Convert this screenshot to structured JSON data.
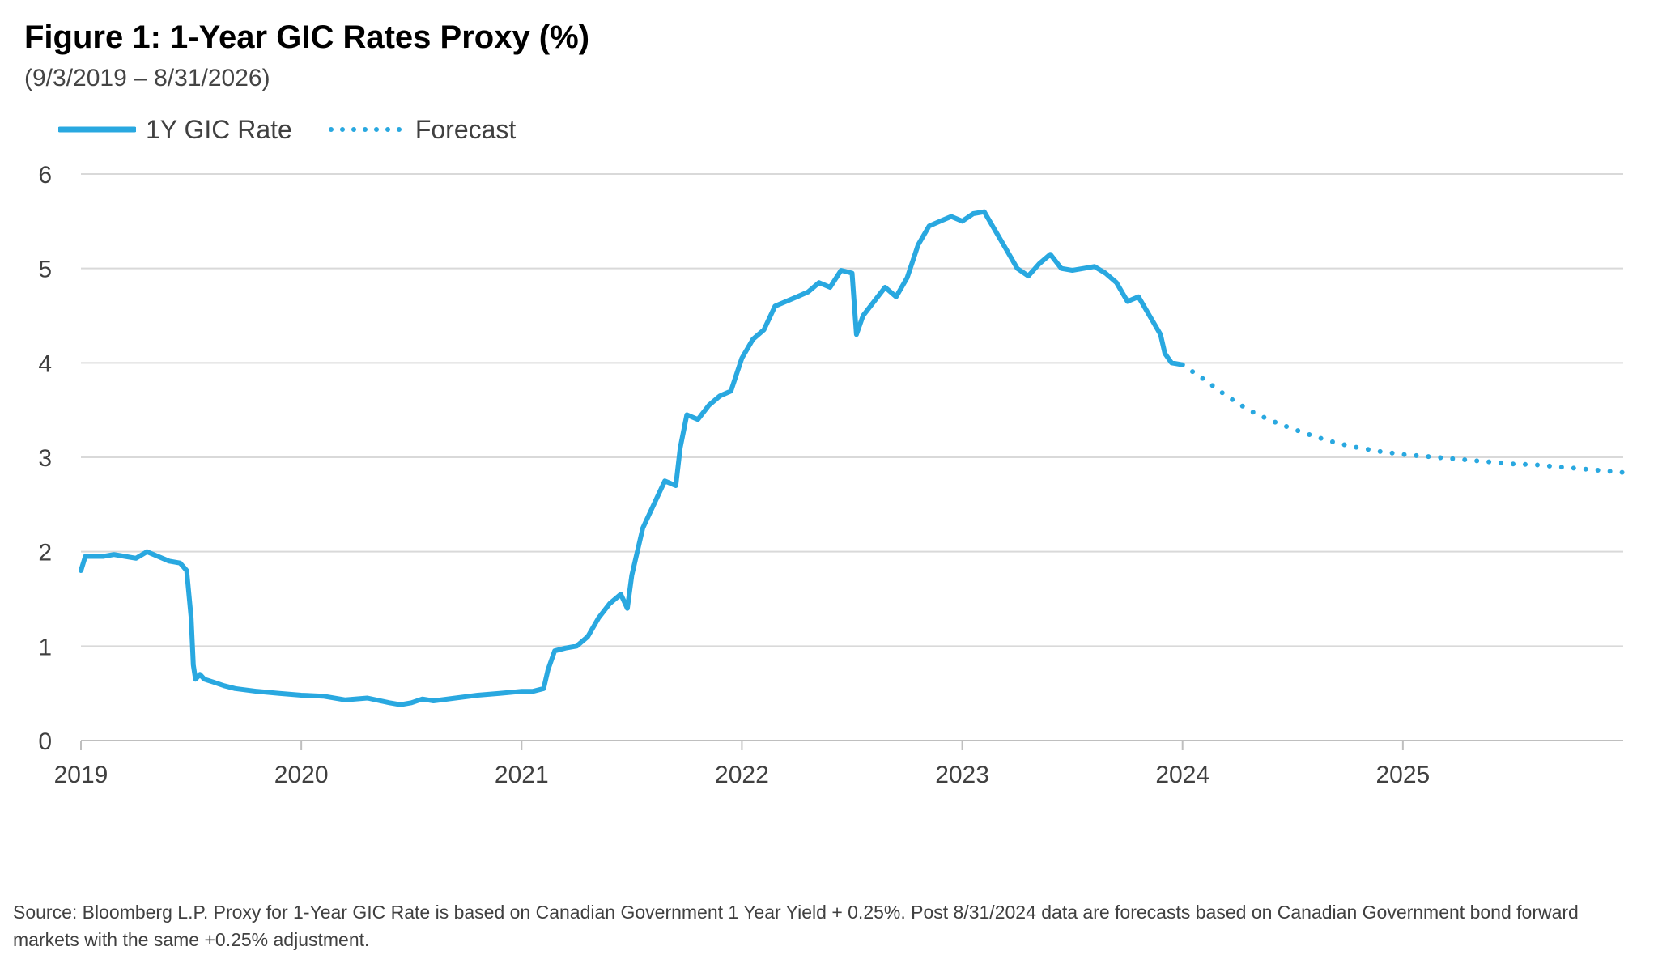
{
  "title": "Figure 1: 1-Year GIC Rates Proxy (%)",
  "subtitle": "(9/3/2019 – 8/31/2026)",
  "legend": {
    "series_label": "1Y GIC Rate",
    "forecast_label": "Forecast"
  },
  "colors": {
    "series": "#29A8E0",
    "grid": "#D9D9D9",
    "axis": "#BFBFBF",
    "text": "#404040"
  },
  "source_note": "Source: Bloomberg L.P. Proxy for 1-Year GIC Rate is based on Canadian Government 1 Year Yield + 0.25%. Post 8/31/2024 data are forecasts based on Canadian Government bond forward markets with the same +0.25% adjustment.",
  "chart_data": {
    "type": "line",
    "title": "Figure 1: 1-Year GIC Rates Proxy (%)",
    "xlabel": "",
    "ylabel": "",
    "xlim": [
      2019.0,
      2026.0
    ],
    "ylim": [
      0,
      6
    ],
    "grid": true,
    "legend_position": "top-left",
    "x_ticks": [
      2019,
      2020,
      2021,
      2022,
      2023,
      2024,
      2025
    ],
    "x_tick_labels": [
      "2019",
      "2020",
      "2021",
      "2022",
      "2023",
      "2024",
      "2025"
    ],
    "y_ticks": [
      0,
      1,
      2,
      3,
      4,
      5,
      6
    ],
    "y_tick_labels": [
      "0",
      "1",
      "2",
      "3",
      "4",
      "5",
      "6"
    ],
    "series": [
      {
        "name": "1Y GIC Rate",
        "style": "solid",
        "x": [
          2019.0,
          2019.02,
          2019.05,
          2019.1,
          2019.15,
          2019.2,
          2019.25,
          2019.3,
          2019.35,
          2019.4,
          2019.45,
          2019.48,
          2019.5,
          2019.51,
          2019.52,
          2019.54,
          2019.56,
          2019.6,
          2019.65,
          2019.7,
          2019.8,
          2019.9,
          2020.0,
          2020.1,
          2020.2,
          2020.3,
          2020.4,
          2020.45,
          2020.5,
          2020.55,
          2020.6,
          2020.7,
          2020.8,
          2020.9,
          2021.0,
          2021.05,
          2021.1,
          2021.12,
          2021.15,
          2021.2,
          2021.25,
          2021.3,
          2021.35,
          2021.4,
          2021.45,
          2021.48,
          2021.5,
          2021.55,
          2021.6,
          2021.65,
          2021.7,
          2021.72,
          2021.75,
          2021.8,
          2021.85,
          2021.9,
          2021.95,
          2022.0,
          2022.05,
          2022.1,
          2022.15,
          2022.2,
          2022.25,
          2022.3,
          2022.35,
          2022.4,
          2022.45,
          2022.5,
          2022.52,
          2022.55,
          2022.6,
          2022.65,
          2022.7,
          2022.75,
          2022.8,
          2022.85,
          2022.9,
          2022.95,
          2023.0,
          2023.05,
          2023.1,
          2023.15,
          2023.2,
          2023.25,
          2023.3,
          2023.35,
          2023.4,
          2023.45,
          2023.5,
          2023.55,
          2023.6,
          2023.65,
          2023.7,
          2023.75,
          2023.8,
          2023.85,
          2023.9,
          2023.92,
          2023.95,
          2024.0
        ],
        "y": [
          1.8,
          1.95,
          1.95,
          1.95,
          1.97,
          1.95,
          1.93,
          2.0,
          1.95,
          1.9,
          1.88,
          1.8,
          1.3,
          0.8,
          0.65,
          0.7,
          0.65,
          0.62,
          0.58,
          0.55,
          0.52,
          0.5,
          0.48,
          0.47,
          0.43,
          0.45,
          0.4,
          0.38,
          0.4,
          0.44,
          0.42,
          0.45,
          0.48,
          0.5,
          0.52,
          0.52,
          0.55,
          0.75,
          0.95,
          0.98,
          1.0,
          1.1,
          1.3,
          1.45,
          1.55,
          1.4,
          1.75,
          2.25,
          2.5,
          2.75,
          2.7,
          3.1,
          3.45,
          3.4,
          3.55,
          3.65,
          3.7,
          4.05,
          4.25,
          4.35,
          4.6,
          4.65,
          4.7,
          4.75,
          4.85,
          4.8,
          4.98,
          4.95,
          4.3,
          4.5,
          4.65,
          4.8,
          4.7,
          4.9,
          5.25,
          5.45,
          5.5,
          5.55,
          5.5,
          5.58,
          5.6,
          5.4,
          5.2,
          5.0,
          4.92,
          5.05,
          5.15,
          5.0,
          4.98,
          5.0,
          5.02,
          4.95,
          4.85,
          4.65,
          4.7,
          4.5,
          4.3,
          4.1,
          4.0,
          3.98
        ]
      },
      {
        "name": "Forecast",
        "style": "dotted",
        "x": [
          2024.0,
          2024.1,
          2024.2,
          2024.3,
          2024.4,
          2024.5,
          2024.6,
          2024.7,
          2024.8,
          2024.9,
          2025.0,
          2025.1,
          2025.2,
          2025.3,
          2025.4,
          2025.5,
          2025.6,
          2025.7,
          2025.8,
          2025.9,
          2026.0
        ],
        "y": [
          3.98,
          3.82,
          3.65,
          3.5,
          3.39,
          3.3,
          3.22,
          3.15,
          3.1,
          3.06,
          3.03,
          3.01,
          2.99,
          2.97,
          2.95,
          2.93,
          2.92,
          2.9,
          2.88,
          2.86,
          2.84
        ]
      }
    ]
  }
}
